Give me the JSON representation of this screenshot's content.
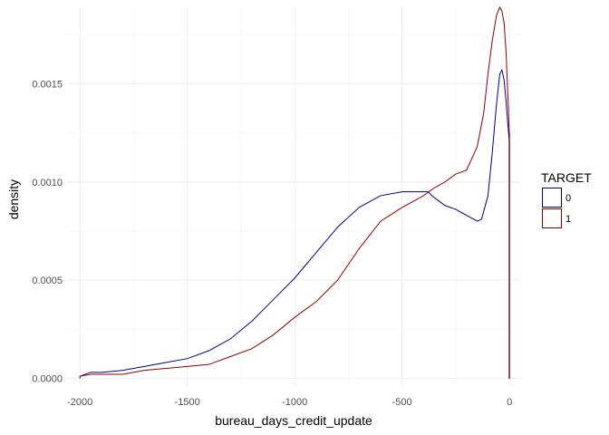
{
  "chart_data": {
    "type": "area",
    "xlabel": "bureau_days_credit_update",
    "ylabel": "density",
    "xlim": [
      -2060,
      50
    ],
    "ylim": [
      -4e-05,
      0.00189
    ],
    "x_ticks": [
      -2000,
      -1500,
      -1000,
      -500,
      0
    ],
    "x_tick_labels": [
      "-2000",
      "-1500",
      "-1000",
      "-500",
      "0"
    ],
    "y_ticks": [
      0,
      0.0005,
      0.001,
      0.0015
    ],
    "y_tick_labels": [
      "0.0000",
      "0.0005",
      "0.0010",
      "0.0015"
    ],
    "grid": true,
    "legend": {
      "title": "TARGET",
      "position": "right"
    },
    "series": [
      {
        "name": "0",
        "color": "#00008B",
        "x": [
          -2000,
          -1950,
          -1900,
          -1800,
          -1700,
          -1600,
          -1500,
          -1400,
          -1300,
          -1200,
          -1100,
          -1000,
          -900,
          -800,
          -700,
          -600,
          -500,
          -450,
          -400,
          -380,
          -350,
          -300,
          -250,
          -200,
          -150,
          -130,
          -100,
          -80,
          -60,
          -45,
          -35,
          -25,
          -15,
          -8,
          -4,
          -1
        ],
        "y": [
          1e-05,
          3e-05,
          3e-05,
          4e-05,
          6e-05,
          8e-05,
          0.0001,
          0.00014,
          0.0002,
          0.00029,
          0.0004,
          0.00051,
          0.00064,
          0.00077,
          0.00087,
          0.00093,
          0.00095,
          0.00095,
          0.00095,
          0.00095,
          0.00092,
          0.00088,
          0.00086,
          0.00083,
          0.0008,
          0.00081,
          0.00093,
          0.00115,
          0.0014,
          0.00155,
          0.00157,
          0.00152,
          0.0014,
          0.0013,
          0.00125,
          0.00121
        ]
      },
      {
        "name": "1",
        "color": "#8B0000",
        "x": [
          -2000,
          -1950,
          -1900,
          -1800,
          -1700,
          -1600,
          -1500,
          -1400,
          -1300,
          -1200,
          -1100,
          -1000,
          -900,
          -800,
          -700,
          -600,
          -500,
          -450,
          -400,
          -350,
          -300,
          -250,
          -200,
          -150,
          -120,
          -100,
          -80,
          -60,
          -45,
          -35,
          -25,
          -15,
          -8,
          -4,
          -1
        ],
        "y": [
          1e-05,
          2e-05,
          2e-05,
          2e-05,
          4e-05,
          5e-05,
          6e-05,
          7e-05,
          0.00011,
          0.00015,
          0.00022,
          0.00031,
          0.00039,
          0.0005,
          0.00066,
          0.0008,
          0.00087,
          0.0009,
          0.00093,
          0.00097,
          0.001,
          0.00104,
          0.00106,
          0.00118,
          0.00135,
          0.00155,
          0.00172,
          0.00185,
          0.00189,
          0.00187,
          0.00181,
          0.00165,
          0.00145,
          0.00135,
          0.00125
        ]
      }
    ]
  }
}
